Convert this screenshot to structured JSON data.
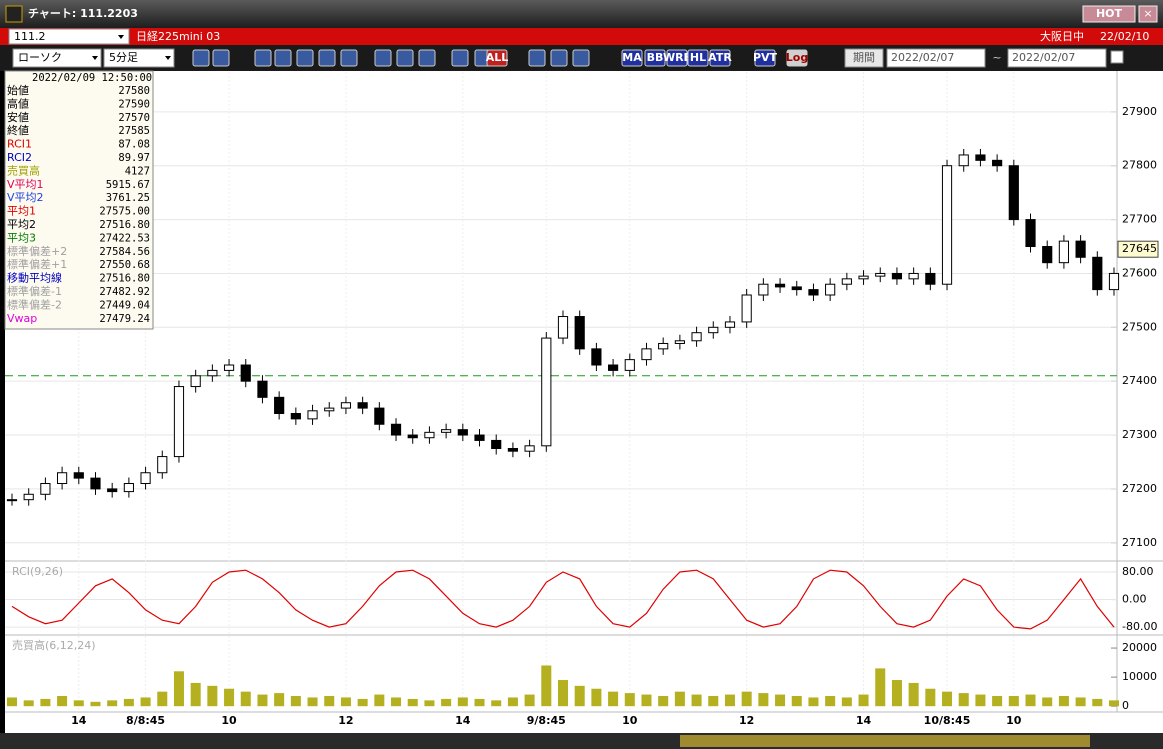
{
  "window": {
    "title": "チャート: 111.2203",
    "hot": "HOT",
    "close": "×"
  },
  "symbol_bar": {
    "code": "111.2",
    "name": "日経225mini 03",
    "session": "大阪日中",
    "date": "22/02/10"
  },
  "toolbar": {
    "chart_type": "ローソク",
    "interval": "5分足",
    "icon_labels": [
      "ALL",
      "MA",
      "BB",
      "WRE",
      "HL",
      "ATR",
      "PVT",
      "Log"
    ],
    "period_button": "期間",
    "from": "2022/02/07",
    "tilde": "~",
    "to": "2022/02/07"
  },
  "info_panel": {
    "datetime": "2022/02/09  12:50:00",
    "rows": [
      {
        "label": "始値",
        "value": "27580",
        "color": "#000000"
      },
      {
        "label": "高値",
        "value": "27590",
        "color": "#000000"
      },
      {
        "label": "安値",
        "value": "27570",
        "color": "#000000"
      },
      {
        "label": "終値",
        "value": "27585",
        "color": "#000000"
      },
      {
        "label": "RCI1",
        "value": "87.08",
        "color": "#e00000"
      },
      {
        "label": "RCI2",
        "value": "89.97",
        "color": "#0000c0"
      },
      {
        "label": "売買高",
        "value": "4127",
        "color": "#a0a000"
      },
      {
        "label": "V平均1",
        "value": "5915.67",
        "color": "#e00060"
      },
      {
        "label": "V平均2",
        "value": "3761.25",
        "color": "#2040e0"
      },
      {
        "label": "平均1",
        "value": "27575.00",
        "color": "#e00000"
      },
      {
        "label": "平均2",
        "value": "27516.80",
        "color": "#000000"
      },
      {
        "label": "平均3",
        "value": "27422.53",
        "color": "#008000"
      },
      {
        "label": "標準偏差+2",
        "value": "27584.56",
        "color": "#a0a0a0"
      },
      {
        "label": "標準偏差+1",
        "value": "27550.68",
        "color": "#a0a0a0"
      },
      {
        "label": "移動平均線",
        "value": "27516.80",
        "color": "#0000c0"
      },
      {
        "label": "標準偏差-1",
        "value": "27482.92",
        "color": "#a0a0a0"
      },
      {
        "label": "標準偏差-2",
        "value": "27449.04",
        "color": "#a0a0a0"
      },
      {
        "label": "Vwap",
        "value": "27479.24",
        "color": "#e000e0"
      }
    ]
  },
  "chart_data": [
    {
      "type": "candlestick",
      "categories": [
        null,
        null,
        null,
        null,
        "14",
        null,
        null,
        null,
        "8/8:45",
        null,
        null,
        null,
        null,
        "10",
        null,
        null,
        null,
        null,
        null,
        null,
        "12",
        null,
        null,
        null,
        null,
        null,
        null,
        "14",
        null,
        null,
        null,
        null,
        "9/8:45",
        null,
        null,
        null,
        null,
        "10",
        null,
        null,
        null,
        null,
        null,
        null,
        "12",
        null,
        null,
        null,
        null,
        null,
        null,
        "14",
        null,
        null,
        null,
        null,
        "10/8:45",
        null,
        null,
        null,
        "10",
        null,
        null,
        null,
        null,
        null,
        null
      ],
      "values": [
        27180,
        27190,
        27210,
        27230,
        27220,
        27200,
        27195,
        27210,
        27230,
        27260,
        27390,
        27410,
        27420,
        27430,
        27400,
        27370,
        27340,
        27330,
        27345,
        27350,
        27360,
        27350,
        27320,
        27300,
        27295,
        27305,
        27310,
        27300,
        27290,
        27275,
        27270,
        27280,
        27480,
        27520,
        27460,
        27430,
        27420,
        27440,
        27460,
        27470,
        27475,
        27490,
        27500,
        27510,
        27560,
        27580,
        27575,
        27570,
        27560,
        27580,
        27590,
        27595,
        27600,
        27590,
        27600,
        27580,
        27800,
        27820,
        27810,
        27800,
        27700,
        27650,
        27620,
        27660,
        27630,
        27570,
        27600
      ],
      "ylim": [
        27068,
        27974
      ],
      "yticks": [
        27100,
        27200,
        27300,
        27400,
        27500,
        27600,
        27700,
        27800,
        27900
      ],
      "reference_line": 27410,
      "last_price": 27645,
      "grid": true
    },
    {
      "type": "line",
      "title": "RCI(9,26)",
      "color": "#e00000",
      "values": [
        -20,
        -50,
        -70,
        -60,
        -10,
        40,
        60,
        20,
        -30,
        -60,
        -70,
        -20,
        50,
        80,
        85,
        60,
        20,
        -30,
        -60,
        -80,
        -70,
        -20,
        40,
        80,
        85,
        60,
        10,
        -40,
        -70,
        -80,
        -60,
        -20,
        50,
        80,
        60,
        -20,
        -70,
        -80,
        -40,
        30,
        80,
        85,
        60,
        0,
        -60,
        -80,
        -70,
        -20,
        60,
        85,
        80,
        40,
        -20,
        -70,
        -80,
        -60,
        10,
        60,
        40,
        -30,
        -80,
        -85,
        -60,
        0,
        60,
        -20,
        -80
      ],
      "ylim": [
        -97,
        106
      ],
      "yticks": [
        {
          "value": 80,
          "label": "80.00"
        },
        {
          "value": 0,
          "label": "0.00"
        },
        {
          "value": -80,
          "label": "-80.00"
        }
      ]
    },
    {
      "type": "bar",
      "title": "売買高(6,12,24)",
      "color": "#b4b020",
      "values": [
        3000,
        2000,
        2500,
        3500,
        2000,
        1500,
        2000,
        2500,
        3000,
        5000,
        12000,
        8000,
        7000,
        6000,
        5000,
        4000,
        4500,
        3500,
        3000,
        3500,
        3000,
        2500,
        4000,
        3000,
        2500,
        2000,
        2500,
        3000,
        2500,
        2000,
        3000,
        4000,
        14000,
        9000,
        7000,
        6000,
        5000,
        4500,
        4000,
        3500,
        5000,
        4000,
        3500,
        4000,
        5000,
        4500,
        4000,
        3500,
        3000,
        3500,
        3000,
        4000,
        13000,
        9000,
        8000,
        6000,
        5000,
        4500,
        4000,
        3500,
        3500,
        4000,
        3000,
        3500,
        3000,
        2500,
        2000
      ],
      "ylim": [
        -2000,
        23800
      ],
      "yticks": [
        0,
        10000,
        20000
      ]
    }
  ]
}
